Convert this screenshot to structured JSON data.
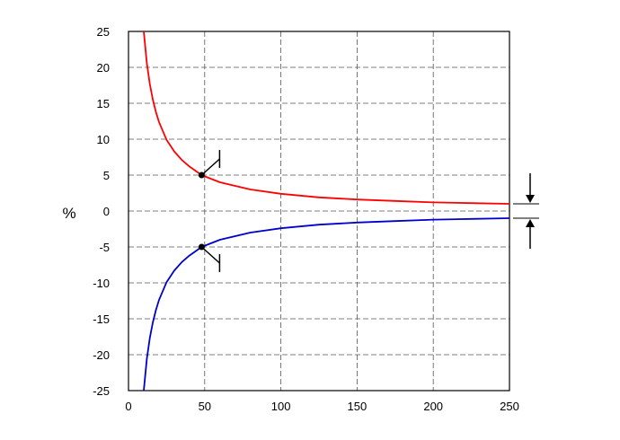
{
  "chart_data": {
    "type": "line",
    "title": "",
    "xlabel": "",
    "ylabel": "%",
    "xlim": [
      0,
      250
    ],
    "ylim": [
      -25,
      25
    ],
    "xticks": [
      0,
      50,
      100,
      150,
      200,
      250
    ],
    "xtick_labels": [
      "0",
      "50",
      "100",
      "150",
      "200",
      "250"
    ],
    "yticks": [
      25,
      20,
      15,
      10,
      5,
      0,
      -5,
      -10,
      -15,
      -20,
      -25
    ],
    "ytick_labels": [
      "25",
      "20",
      "15",
      "10",
      "5",
      "0",
      "-5",
      "-10",
      "-15",
      "-20",
      "-25"
    ],
    "grid": true,
    "grid_style": "dashed",
    "series": [
      {
        "color": "#ff0000",
        "x": [
          10,
          12,
          14,
          16,
          18,
          20,
          25,
          30,
          35,
          40,
          48,
          60,
          80,
          100,
          125,
          150,
          175,
          200,
          225,
          250
        ],
        "y": [
          25,
          20.6,
          17.7,
          15.5,
          13.8,
          12.4,
          9.9,
          8.3,
          7.1,
          6.2,
          5.0,
          4.0,
          3.0,
          2.4,
          1.9,
          1.6,
          1.4,
          1.2,
          1.1,
          1.0
        ]
      },
      {
        "color": "#0000cc",
        "x": [
          10,
          12,
          14,
          16,
          18,
          20,
          25,
          30,
          35,
          40,
          48,
          60,
          80,
          100,
          125,
          150,
          175,
          200,
          225,
          250
        ],
        "y": [
          -25,
          -20.6,
          -17.7,
          -15.5,
          -13.8,
          -12.4,
          -9.9,
          -8.3,
          -7.1,
          -6.2,
          -5.0,
          -4.0,
          -3.0,
          -2.4,
          -1.9,
          -1.6,
          -1.4,
          -1.2,
          -1.1,
          -1.0
        ]
      }
    ],
    "markers": [
      {
        "x": 48,
        "y": 5
      },
      {
        "x": 48,
        "y": -5
      }
    ],
    "limit_indicator": {
      "upper": 1.0,
      "lower": -1.0
    }
  }
}
